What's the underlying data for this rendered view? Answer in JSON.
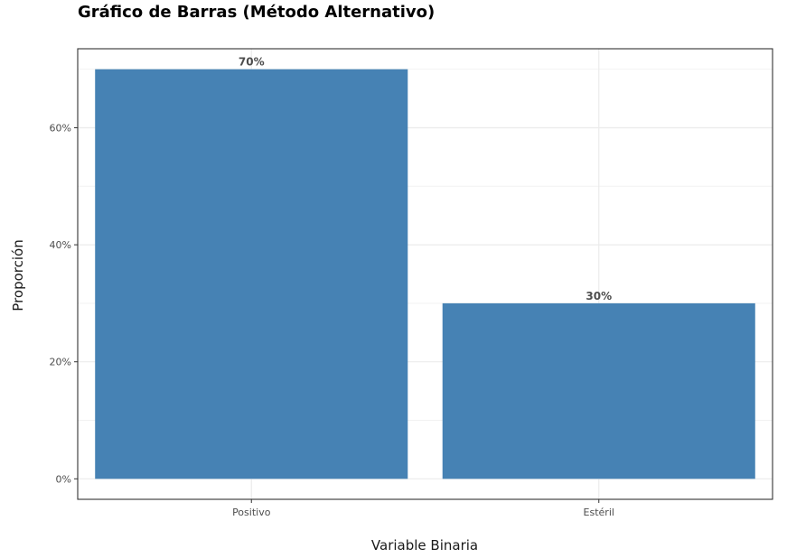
{
  "chart_data": {
    "type": "bar",
    "title": "Gráfico de Barras (Método Alternativo)",
    "xlabel": "Variable Binaria",
    "ylabel": "Proporción",
    "categories": [
      "Positivo",
      "Estéril"
    ],
    "values": [
      0.7,
      0.3
    ],
    "data_labels": [
      "70%",
      "30%"
    ],
    "ylim": [
      -0.035,
      0.735
    ],
    "yticks": [
      0,
      0.2,
      0.4,
      0.6
    ],
    "ytick_labels": [
      "0%",
      "20%",
      "40%",
      "60%"
    ],
    "bar_color": "#4682B4",
    "grid": true,
    "theme": "bw",
    "legend": "none"
  }
}
